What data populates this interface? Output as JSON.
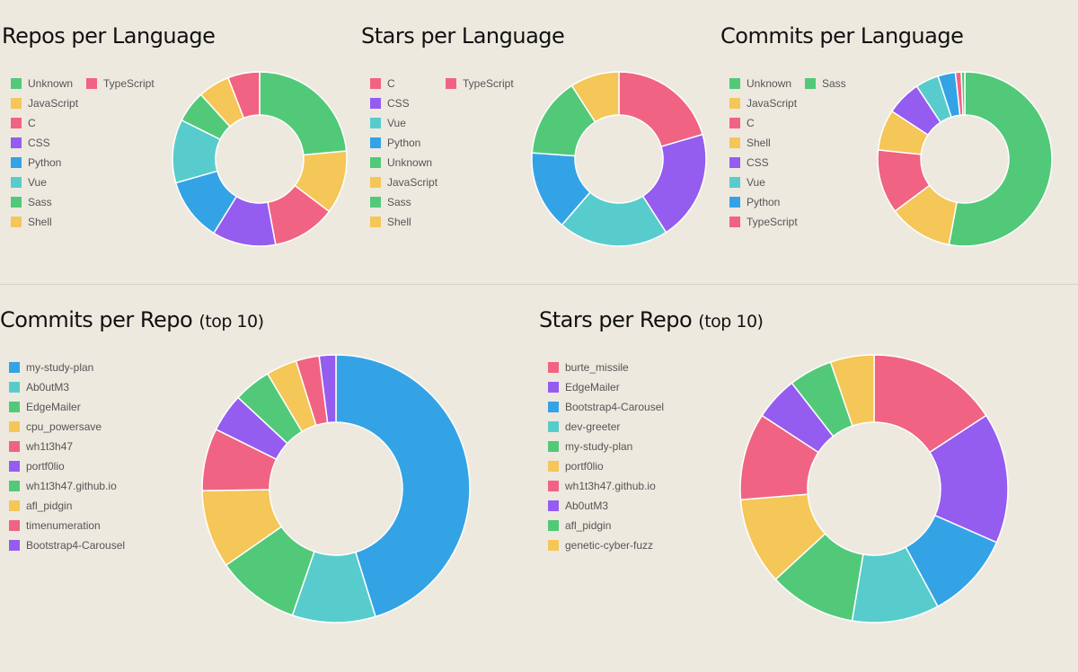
{
  "palette": {
    "green": "#52c978",
    "yellow": "#f5c658",
    "pink": "#f16382",
    "purple": "#955cf0",
    "blue": "#34a3e6",
    "teal": "#58cccc"
  },
  "charts": {
    "repos_lang": {
      "title": "Repos per Language",
      "subtitle": ""
    },
    "stars_lang": {
      "title": "Stars per Language",
      "subtitle": ""
    },
    "commits_lang": {
      "title": "Commits per Language",
      "subtitle": ""
    },
    "commits_repo": {
      "title": "Commits per Repo",
      "subtitle": "(top 10)"
    },
    "stars_repo": {
      "title": "Stars per Repo",
      "subtitle": "(top 10)"
    }
  },
  "chart_data": [
    {
      "id": "repos_lang",
      "type": "pie",
      "title": "Repos per Language",
      "categories": [
        "Unknown",
        "JavaScript",
        "C",
        "CSS",
        "Python",
        "Vue",
        "Sass",
        "Shell",
        "TypeScript"
      ],
      "values": [
        20,
        10,
        10,
        10,
        10,
        10,
        5,
        5,
        5
      ],
      "colors": [
        "green",
        "yellow",
        "pink",
        "purple",
        "blue",
        "teal",
        "green",
        "yellow",
        "pink"
      ],
      "slice_order": [
        "Unknown",
        "JavaScript",
        "C",
        "CSS",
        "Python",
        "Vue",
        "Sass",
        "Shell",
        "TypeScript"
      ]
    },
    {
      "id": "stars_lang",
      "type": "pie",
      "title": "Stars per Language",
      "categories": [
        "C",
        "CSS",
        "Vue",
        "Python",
        "Unknown",
        "JavaScript",
        "Sass",
        "Shell",
        "TypeScript"
      ],
      "values": [
        18,
        18,
        18,
        13,
        13,
        8,
        0,
        0,
        0
      ],
      "colors": [
        "pink",
        "purple",
        "teal",
        "blue",
        "green",
        "yellow",
        "green",
        "yellow",
        "pink"
      ],
      "slice_order": [
        "C",
        "CSS",
        "Vue",
        "Python",
        "Unknown",
        "JavaScript",
        "Sass",
        "Shell",
        "TypeScript"
      ]
    },
    {
      "id": "commits_lang",
      "type": "pie",
      "title": "Commits per Language",
      "categories": [
        "Unknown",
        "JavaScript",
        "C",
        "Shell",
        "CSS",
        "Vue",
        "Python",
        "TypeScript",
        "Sass"
      ],
      "values": [
        49,
        11,
        11,
        7,
        6,
        4,
        3,
        1,
        0.6
      ],
      "colors": [
        "green",
        "yellow",
        "pink",
        "yellow",
        "purple",
        "teal",
        "blue",
        "pink",
        "green"
      ],
      "slice_order": [
        "Unknown",
        "JavaScript",
        "C",
        "Shell",
        "CSS",
        "Vue",
        "Python",
        "TypeScript",
        "Sass"
      ]
    },
    {
      "id": "commits_repo",
      "type": "pie",
      "title": "Commits per Repo (top 10)",
      "categories": [
        "my-study-plan",
        "Ab0utM3",
        "EdgeMailer",
        "cpu_powersave",
        "wh1t3h47",
        "portf0lio",
        "wh1t3h47.github.io",
        "afl_pidgin",
        "timenumeration",
        "Bootstrap4-Carousel"
      ],
      "values": [
        45,
        10,
        10,
        9.4,
        7.5,
        4.6,
        4.5,
        3.7,
        2.8,
        2
      ],
      "colors": [
        "blue",
        "teal",
        "green",
        "yellow",
        "pink",
        "purple",
        "green",
        "yellow",
        "pink",
        "purple"
      ],
      "slice_order": [
        "my-study-plan",
        "Ab0utM3",
        "EdgeMailer",
        "cpu_powersave",
        "wh1t3h47",
        "portf0lio",
        "wh1t3h47.github.io",
        "afl_pidgin",
        "timenumeration",
        "Bootstrap4-Carousel"
      ]
    },
    {
      "id": "stars_repo",
      "type": "pie",
      "title": "Stars per Repo (top 10)",
      "categories": [
        "burte_missile",
        "EdgeMailer",
        "Bootstrap4-Carousel",
        "dev-greeter",
        "my-study-plan",
        "portf0lio",
        "wh1t3h47.github.io",
        "Ab0utM3",
        "afl_pidgin",
        "genetic-cyber-fuzz"
      ],
      "values": [
        15,
        15,
        10,
        10,
        10,
        10,
        10,
        5,
        5,
        5
      ],
      "colors": [
        "pink",
        "purple",
        "blue",
        "teal",
        "green",
        "yellow",
        "pink",
        "purple",
        "green",
        "yellow"
      ],
      "slice_order": [
        "burte_missile",
        "EdgeMailer",
        "Bootstrap4-Carousel",
        "dev-greeter",
        "my-study-plan",
        "portf0lio",
        "wh1t3h47.github.io",
        "Ab0utM3",
        "afl_pidgin",
        "genetic-cyber-fuzz"
      ]
    }
  ]
}
